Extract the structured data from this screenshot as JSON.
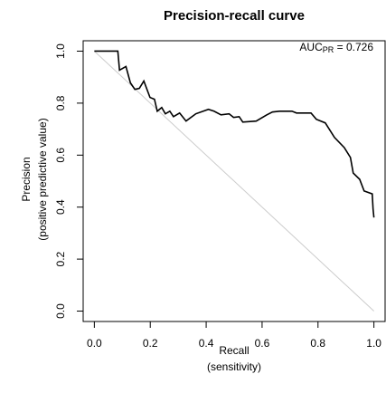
{
  "chart_data": {
    "type": "line",
    "title": "Precision-recall curve",
    "x_label": [
      "Recall",
      "(sensitivity)"
    ],
    "y_label": [
      "Precision",
      "(positive predictive value)"
    ],
    "annotation": {
      "main": "AUC",
      "sub": "PR",
      "rest": " = 0.726"
    },
    "xlim": [
      -0.04,
      1.04
    ],
    "ylim": [
      -0.04,
      1.04
    ],
    "xticks": [
      {
        "value": 0,
        "label": "0.0"
      },
      0.2,
      0.4,
      0.6,
      0.8,
      {
        "value": 1,
        "label": "1.0"
      }
    ],
    "yticks": [
      {
        "value": 0,
        "label": "0.0"
      },
      0.2,
      0.4,
      0.6,
      0.8,
      {
        "value": 1,
        "label": "1.0"
      }
    ],
    "series": [
      {
        "color": "#cccccc",
        "x": [
          0,
          1
        ],
        "values": [
          1,
          0
        ]
      },
      {
        "color": "#000000",
        "x": [
          0,
          0.084,
          0.09,
          0.113,
          0.129,
          0.145,
          0.161,
          0.177,
          0.199,
          0.215,
          0.225,
          0.241,
          0.254,
          0.27,
          0.283,
          0.305,
          0.328,
          0.363,
          0.408,
          0.428,
          0.453,
          0.482,
          0.498,
          0.518,
          0.531,
          0.579,
          0.617,
          0.637,
          0.662,
          0.707,
          0.723,
          0.775,
          0.794,
          0.826,
          0.859,
          0.894,
          0.916,
          0.926,
          0.949,
          0.965,
          0.994,
          0.997,
          1.0
        ],
        "values": [
          1.0,
          1.0,
          0.927,
          0.941,
          0.878,
          0.853,
          0.857,
          0.885,
          0.822,
          0.815,
          0.769,
          0.783,
          0.759,
          0.769,
          0.748,
          0.762,
          0.731,
          0.759,
          0.776,
          0.769,
          0.755,
          0.759,
          0.745,
          0.748,
          0.727,
          0.731,
          0.755,
          0.766,
          0.769,
          0.769,
          0.762,
          0.762,
          0.738,
          0.724,
          0.668,
          0.629,
          0.591,
          0.531,
          0.507,
          0.462,
          0.451,
          0.392,
          0.36
        ]
      }
    ]
  }
}
